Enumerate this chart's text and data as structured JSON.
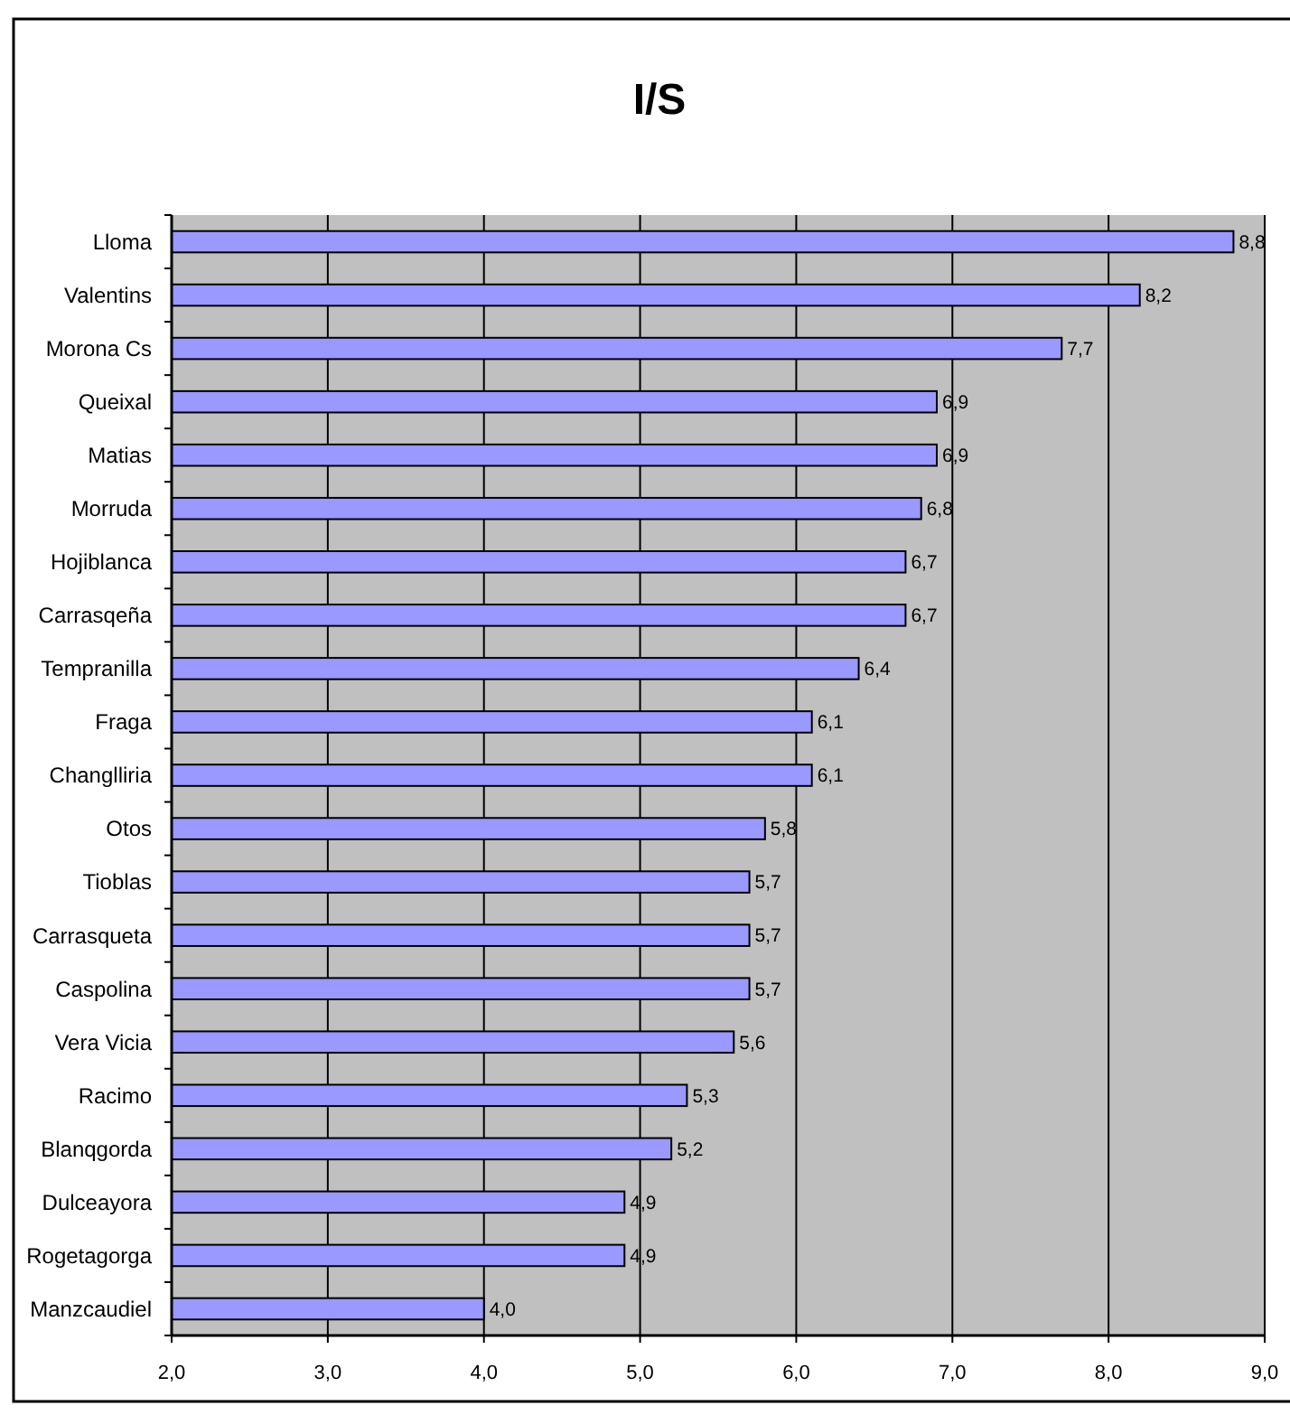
{
  "chart_data": {
    "type": "bar",
    "title": "I/S",
    "orientation": "horizontal",
    "categories": [
      "Lloma",
      "Valentins",
      "Morona Cs",
      "Queixal",
      "Matias",
      "Morruda",
      "Hojiblanca",
      "Carrasqeña",
      "Tempranilla",
      "Fraga",
      "Changlliria",
      "Otos",
      "Tioblas",
      "Carrasqueta",
      "Caspolina",
      "Vera Vicia",
      "Racimo",
      "Blanqgorda",
      "Dulceayora",
      "Rogetagorga",
      "Manzcaudiel"
    ],
    "values": [
      8.8,
      8.2,
      7.7,
      6.9,
      6.9,
      6.8,
      6.7,
      6.7,
      6.4,
      6.1,
      6.1,
      5.8,
      5.7,
      5.7,
      5.7,
      5.6,
      5.3,
      5.2,
      4.9,
      4.9,
      4.0
    ],
    "value_labels": [
      "8,8",
      "8,2",
      "7,7",
      "6,9",
      "6,9",
      "6,8",
      "6,7",
      "6,7",
      "6,4",
      "6,1",
      "6,1",
      "5,8",
      "5,7",
      "5,7",
      "5,7",
      "5,6",
      "5,3",
      "5,2",
      "4,9",
      "4,9",
      "4,0"
    ],
    "color": "#9999ff",
    "xlim": [
      2,
      9
    ],
    "xticks": [
      {
        "value": 2,
        "label": "2,0"
      },
      {
        "value": 3,
        "label": "3,0"
      },
      {
        "value": 4,
        "label": "4,0"
      },
      {
        "value": 5,
        "label": "5,0"
      },
      {
        "value": 6,
        "label": "6,0"
      },
      {
        "value": 7,
        "label": "7,0"
      },
      {
        "value": 8,
        "label": "8,0"
      },
      {
        "value": 9,
        "label": "9,0"
      }
    ],
    "grid": "x"
  }
}
